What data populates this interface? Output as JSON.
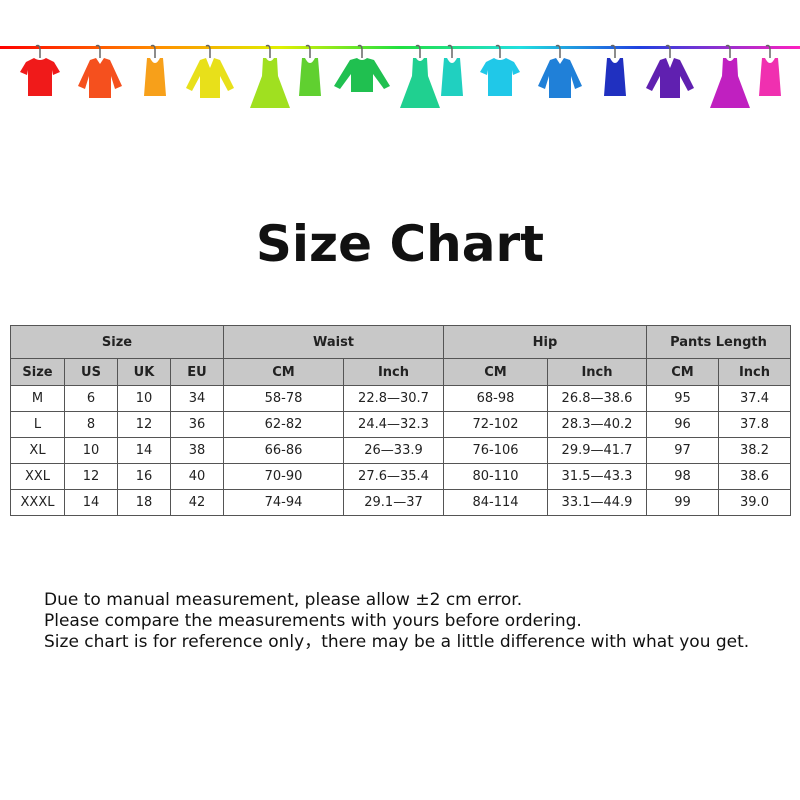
{
  "banner": {
    "line_gradient": [
      "#ff0000",
      "#ff8000",
      "#ffff00",
      "#00ff00",
      "#00ffff",
      "#0000ff",
      "#ff00ff"
    ],
    "garments": [
      {
        "icon": "tshirt-icon",
        "color": "#f01a1a"
      },
      {
        "icon": "shirt-icon",
        "color": "#f5501e"
      },
      {
        "icon": "tank-top-icon",
        "color": "#f7a01a"
      },
      {
        "icon": "cardigan-icon",
        "color": "#e8e01a"
      },
      {
        "icon": "dress-icon",
        "color": "#a0e020"
      },
      {
        "icon": "tank-top-icon",
        "color": "#60d030"
      },
      {
        "icon": "sweater-icon",
        "color": "#20c050"
      },
      {
        "icon": "dress-icon",
        "color": "#20d090"
      },
      {
        "icon": "tank-top-icon",
        "color": "#20d0c0"
      },
      {
        "icon": "tshirt-icon",
        "color": "#20c8e8"
      },
      {
        "icon": "shirt-icon",
        "color": "#2080d8"
      },
      {
        "icon": "tank-top-icon",
        "color": "#2030c0"
      },
      {
        "icon": "cardigan-icon",
        "color": "#6020b0"
      },
      {
        "icon": "dress-icon",
        "color": "#c020c0"
      },
      {
        "icon": "tank-top-icon",
        "color": "#f030b0"
      }
    ]
  },
  "title": "Size Chart",
  "table": {
    "groups": [
      "Size",
      "Waist",
      "Hip",
      "Pants Length"
    ],
    "subheaders": [
      "Size",
      "US",
      "UK",
      "EU",
      "CM",
      "Inch",
      "CM",
      "Inch",
      "CM",
      "Inch"
    ],
    "rows": [
      [
        "M",
        "6",
        "10",
        "34",
        "58-78",
        "22.8—30.7",
        "68-98",
        "26.8—38.6",
        "95",
        "37.4"
      ],
      [
        "L",
        "8",
        "12",
        "36",
        "62-82",
        "24.4—32.3",
        "72-102",
        "28.3—40.2",
        "96",
        "37.8"
      ],
      [
        "XL",
        "10",
        "14",
        "38",
        "66-86",
        "26—33.9",
        "76-106",
        "29.9—41.7",
        "97",
        "38.2"
      ],
      [
        "XXL",
        "12",
        "16",
        "40",
        "70-90",
        "27.6—35.4",
        "80-110",
        "31.5—43.3",
        "98",
        "38.6"
      ],
      [
        "XXXL",
        "14",
        "18",
        "42",
        "74-94",
        "29.1—37",
        "84-114",
        "33.1—44.9",
        "99",
        "39.0"
      ]
    ]
  },
  "notes": [
    "Due to manual measurement, please allow ±2 cm error.",
    "Please compare the measurements with yours before ordering.",
    "Size chart is for reference only，there may be a little difference with what you get."
  ]
}
